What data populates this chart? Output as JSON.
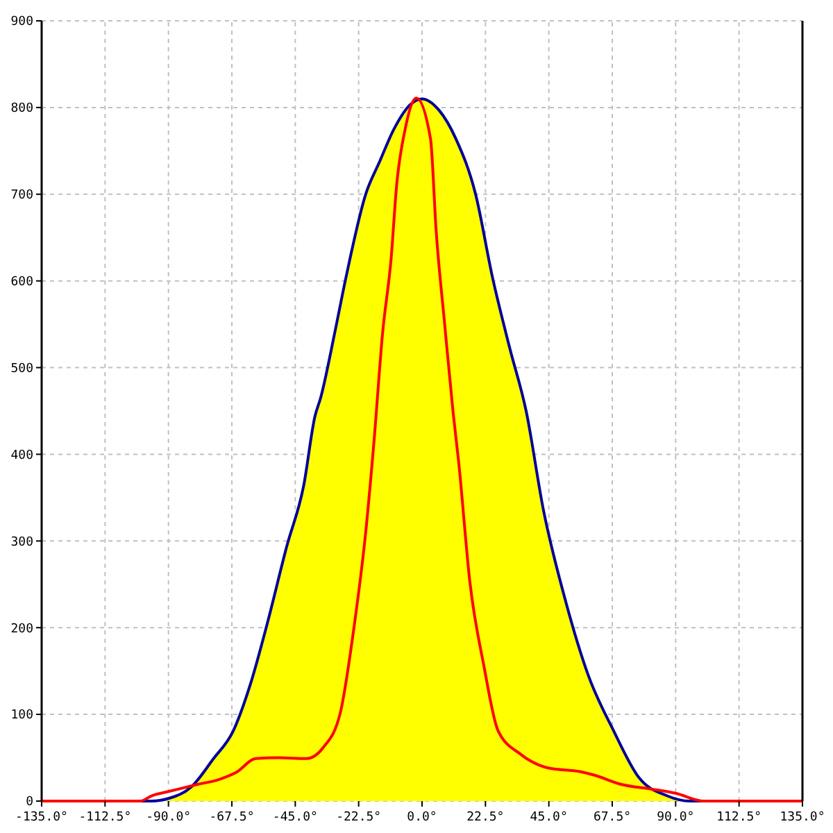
{
  "chart_data": {
    "type": "line",
    "xlim": [
      -135,
      135
    ],
    "ylim": [
      0,
      900
    ],
    "xticks": [
      {
        "value": -135,
        "label": "-135.0°"
      },
      {
        "value": -112.5,
        "label": "-112.5°"
      },
      {
        "value": -90,
        "label": "-90.0°"
      },
      {
        "value": -67.5,
        "label": "-67.5°"
      },
      {
        "value": -45,
        "label": "-45.0°"
      },
      {
        "value": -22.5,
        "label": "-22.5°"
      },
      {
        "value": 0,
        "label": "0.0°"
      },
      {
        "value": 22.5,
        "label": "22.5°"
      },
      {
        "value": 45,
        "label": "45.0°"
      },
      {
        "value": 67.5,
        "label": "67.5°"
      },
      {
        "value": 90,
        "label": "90.0°"
      },
      {
        "value": 112.5,
        "label": "112.5°"
      },
      {
        "value": 135,
        "label": "135.0°"
      }
    ],
    "yticks": [
      0,
      100,
      200,
      300,
      400,
      500,
      600,
      700,
      800,
      900
    ],
    "grid": true,
    "marker": "none",
    "line_style": "solid",
    "series": [
      {
        "type": "area",
        "color": "#ffff00",
        "x": [
          -101,
          -96,
          -90,
          -82,
          -74,
          -67,
          -61,
          -55,
          -48,
          -42,
          -38,
          -36,
          -31,
          -27,
          -20,
          -15,
          -10,
          -4,
          0,
          6,
          12,
          19,
          25,
          31,
          37,
          43,
          51,
          59,
          68,
          77,
          87,
          95,
          100
        ],
        "values": [
          0,
          0,
          3,
          16,
          49,
          81,
          134,
          204,
          294,
          364,
          444,
          465,
          540,
          604,
          700,
          738,
          775,
          804,
          810,
          797,
          764,
          700,
          604,
          524,
          449,
          337,
          230,
          145,
          81,
          27,
          6,
          0,
          0
        ]
      },
      {
        "color": "#ff0000",
        "x": [
          -135,
          -100,
          -96,
          -90,
          -80,
          -72,
          -66,
          -59,
          -51,
          -41,
          -35,
          -29,
          -24,
          -20,
          -17,
          -14,
          -11,
          -9,
          -6,
          -2,
          3,
          5,
          8,
          11,
          13,
          17,
          22,
          27,
          35,
          45,
          56,
          61,
          71,
          81,
          90,
          100,
          135
        ],
        "values": [
          0,
          0,
          6,
          11,
          19,
          25,
          33,
          49,
          50,
          49,
          62,
          102,
          204,
          310,
          417,
          540,
          625,
          711,
          775,
          811,
          764,
          658,
          551,
          449,
          391,
          252,
          155,
          81,
          54,
          38,
          34,
          30,
          19,
          14,
          9,
          0,
          0
        ]
      }
    ]
  }
}
